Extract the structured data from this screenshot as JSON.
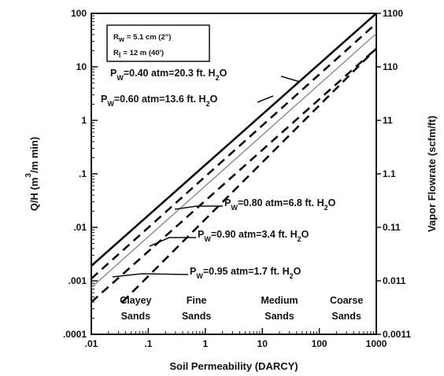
{
  "chart_data": {
    "type": "line",
    "xlabel": "Soil Permeability (DARCY)",
    "ylabel_main": "Q/H  (m",
    "ylabel_sup": "3",
    "ylabel_tail": "/m min)",
    "y2label": "Vapor Flowrate (scfm/ft)",
    "xscale": "log",
    "yscale": "log",
    "xlim": [
      0.01,
      1000
    ],
    "ylim": [
      0.0001,
      100
    ],
    "xticks": [
      ".01",
      ".1",
      "1",
      "10",
      "100",
      "1000"
    ],
    "yticks": [
      ".0001",
      ".001",
      ".01",
      ".1",
      "1",
      "10",
      "100"
    ],
    "y2ticks": [
      "0.0011",
      "0.011",
      "0.11",
      "1.1",
      "11",
      "110",
      "1100"
    ],
    "legend": {
      "rw_sym": "R",
      "rw_sub": "w",
      "rw_val": "= 5.1 cm (2\")",
      "ri_sym": "R",
      "ri_sub": "I",
      "ri_val": "= 12 m (40')"
    },
    "series": [
      {
        "p": "P",
        "sub": "W",
        "rest": "=0.40 atm=20.3 ft. H",
        "h2": "2",
        "o": "O",
        "style": "solid-thick",
        "x": [
          0.01,
          1000
        ],
        "y": [
          0.0019,
          100
        ]
      },
      {
        "p": "P",
        "sub": "W",
        "rest": "=0.60 atm=13.6 ft. H",
        "h2": "2",
        "o": "O",
        "style": "dashed-thick",
        "x": [
          0.01,
          1000
        ],
        "y": [
          0.0011,
          65
        ]
      },
      {
        "p": "P",
        "sub": "W",
        "rest": "=0.80 atm=6.8 ft. H",
        "h2": "2",
        "o": "O",
        "style": "solid-thin-gray",
        "x": [
          0.01,
          1000
        ],
        "y": [
          0.00075,
          42
        ]
      },
      {
        "p": "P",
        "sub": "W",
        "rest": "=0.90 atm=3.4 ft. H",
        "h2": "2",
        "o": "O",
        "style": "dashed-thick",
        "x": [
          0.01,
          1000
        ],
        "y": [
          0.0004,
          22
        ]
      },
      {
        "p": "P",
        "sub": "W",
        "rest": "=0.95 atm=1.7 ft. H",
        "h2": "2",
        "o": "O",
        "style": "dashed-thick",
        "x": [
          0.035,
          1000
        ],
        "y": [
          0.0004,
          22
        ]
      }
    ],
    "soil_classes": [
      {
        "line1": "Clayey",
        "line2": "Sands",
        "at": 0.06
      },
      {
        "line1": "Fine",
        "line2": "Sands",
        "at": 0.7
      },
      {
        "line1": "Medium",
        "line2": "Sands",
        "at": 20
      },
      {
        "line1": "Coarse",
        "line2": "Sands",
        "at": 300
      }
    ]
  }
}
